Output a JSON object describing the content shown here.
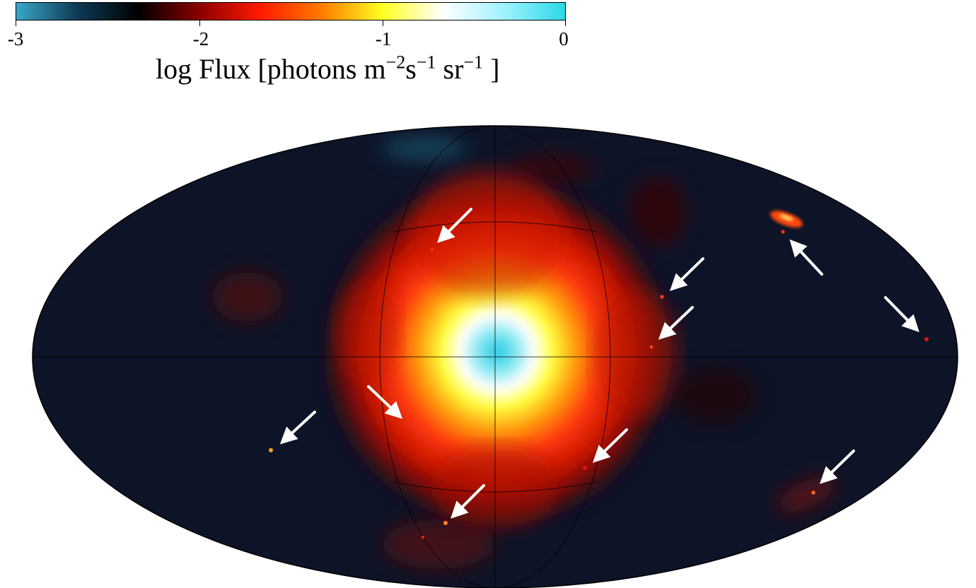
{
  "colorbar": {
    "ticks": [
      "-3",
      "-2",
      "-1",
      "0"
    ],
    "tick_values": [
      -3,
      -2,
      -1,
      0
    ],
    "range": [
      -3,
      0
    ],
    "label_main": "log Flux [photons m",
    "label_exp1": "−2",
    "label_mid1": "s",
    "label_exp2": "−1",
    "label_mid2": " sr",
    "label_exp3": "−1",
    "label_end": "  ]",
    "colors": [
      "#3aa7c8",
      "#0d3a55",
      "#000000",
      "#8a0000",
      "#ff1a00",
      "#ff7a00",
      "#ffff20",
      "#ffffff",
      "#9ff2ff",
      "#2ad9e6"
    ]
  },
  "skymap": {
    "projection": "mollweide",
    "background_color": "#0e1428",
    "arrow_color": "#ffffff",
    "marked_source_count": 11
  }
}
